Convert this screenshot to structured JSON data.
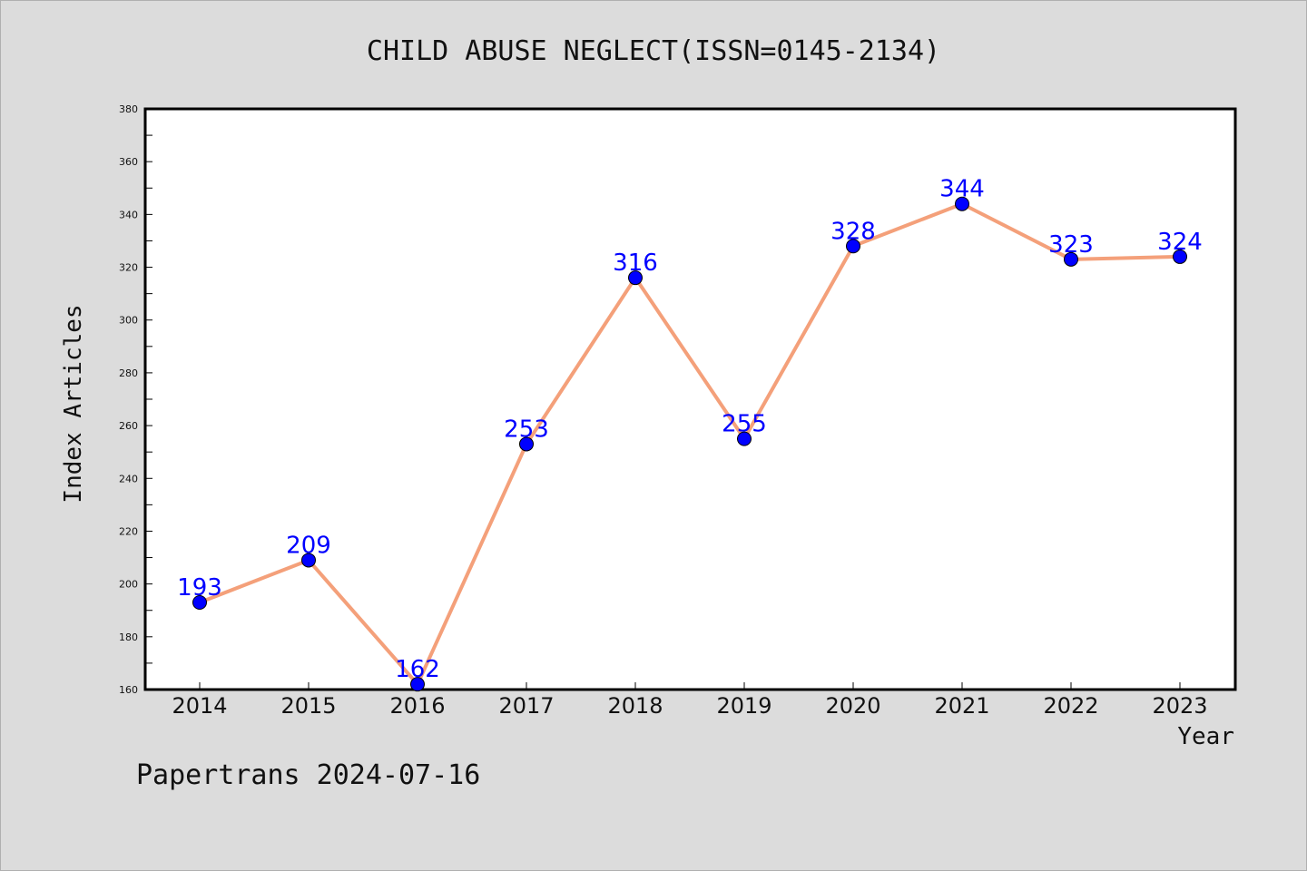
{
  "footer": "Papertrans 2024-07-16",
  "chart_data": {
    "type": "line",
    "title": "CHILD ABUSE NEGLECT(ISSN=0145-2134)",
    "xlabel": "Year",
    "ylabel": "Index Articles",
    "categories": [
      "2014",
      "2015",
      "2016",
      "2017",
      "2018",
      "2019",
      "2020",
      "2021",
      "2022",
      "2023"
    ],
    "values": [
      193,
      209,
      162,
      253,
      316,
      255,
      328,
      344,
      323,
      324
    ],
    "ylim": [
      160,
      380
    ],
    "yticks": [
      160,
      180,
      200,
      220,
      240,
      260,
      280,
      300,
      320,
      340,
      360,
      380
    ],
    "grid": false,
    "legend": "none",
    "colors": {
      "line": "#f4a07a",
      "marker": "#0000ff",
      "label": "#0000ff",
      "background": "#dcdcdc",
      "plot_area": "#ffffff"
    }
  }
}
